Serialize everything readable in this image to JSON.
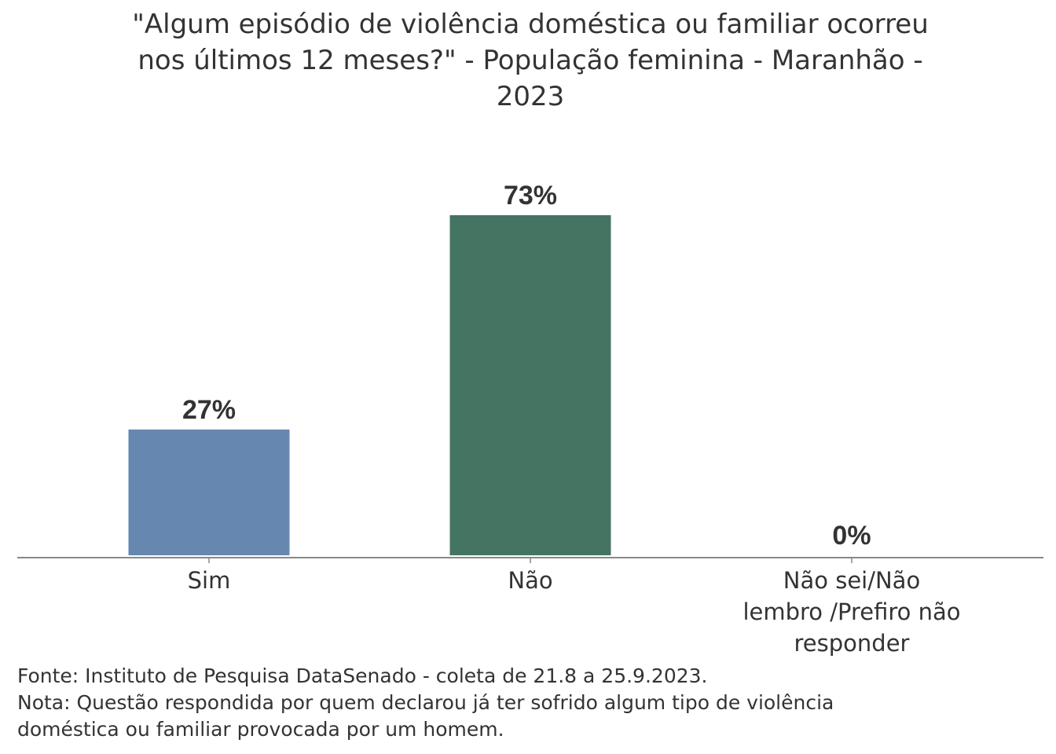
{
  "chart_data": {
    "type": "bar",
    "title": "\"Algum episódio de violência doméstica ou familiar ocorreu nos últimos 12 meses?\" - População feminina - Maranhão - 2023",
    "categories": [
      "Sim",
      "Não",
      "Não sei/Não lembro /Prefiro não responder"
    ],
    "category_lines": [
      [
        "Sim"
      ],
      [
        "Não"
      ],
      [
        "Não sei/Não",
        "lembro /Prefiro não",
        "responder"
      ]
    ],
    "values": [
      27,
      73,
      0
    ],
    "data_labels": [
      "27%",
      "73%",
      "0%"
    ],
    "colors": [
      "#6688b0",
      "#447563",
      "#888888"
    ],
    "unit": "%",
    "xlabel": "",
    "ylabel": "",
    "ylim": [
      0,
      100
    ],
    "grid": false
  },
  "footer": {
    "source": "Fonte: Instituto de Pesquisa DataSenado - coleta de 21.8 a 25.9.2023.",
    "note_line1": "Nota: Questão respondida por quem declarou já ter sofrido algum tipo de violência",
    "note_line2": "doméstica ou familiar provocada por um homem."
  }
}
